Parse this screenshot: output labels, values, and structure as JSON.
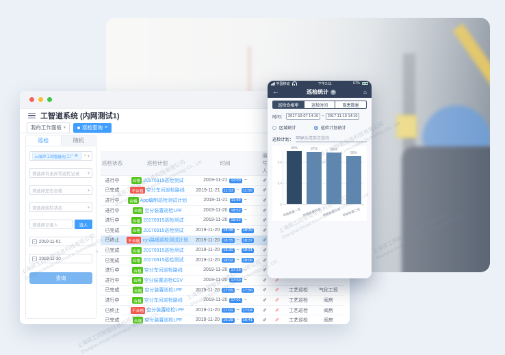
{
  "page": {
    "bg": "#ecf1f7"
  },
  "watermark": {
    "cn": "上海异工同智能信息科技有限公司",
    "en": "Shanghai Inroad Information Technology Co., Ltd."
  },
  "window": {
    "title": "工智道系统 (内网测试1)",
    "workspace_tab": "我的工作面板",
    "active_tab_label": "巡检查询",
    "sidebar": {
      "tabs": [
        {
          "label": "巡检",
          "active": true
        },
        {
          "label": "随机",
          "active": false
        }
      ],
      "factory_tag": "上海异工同智能化工厂",
      "filter_placeholders": [
        "请选择有无异常巡检记录",
        "请选择是否合格",
        "请选择巡检状态"
      ],
      "recorder_placeholder": "请选择记录人",
      "pick_person_button": "选人",
      "date_from": "2019-11-01",
      "date_to": "2019-11-30",
      "search_button": "查询"
    },
    "table": {
      "headers": [
        "巡检状态",
        "巡检计划",
        "时间",
        "编写人",
        "",
        "",
        ""
      ],
      "rows": [
        {
          "status": "进行中",
          "result": "合格",
          "plan": "20170915巡检测试",
          "date": "2019-11-21",
          "start": "12:00",
          "end": "",
          "type": "",
          "area": "",
          "highlight": false,
          "extra_badge": false
        },
        {
          "status": "已完成",
          "result": "不合格",
          "plan": "空分车间巡检路线",
          "date": "2019-11-21",
          "start": "11:53",
          "end": "11:58",
          "type": "",
          "area": "",
          "highlight": false,
          "extra_badge": false
        },
        {
          "status": "进行中",
          "result": "合格",
          "plan": "App编制巡检测试计划",
          "date": "2019-11-21",
          "start": "11:49",
          "end": "",
          "type": "",
          "area": "",
          "highlight": false,
          "extra_badge": false
        },
        {
          "status": "进行中",
          "result": "合格",
          "plan": "空分装置巡检LPF",
          "date": "2019-11-20",
          "start": "18:52",
          "end": "",
          "type": "",
          "area": "",
          "highlight": false,
          "extra_badge": false
        },
        {
          "status": "进行中",
          "result": "合格",
          "plan": "20170915巡检测试",
          "date": "2019-11-20",
          "start": "18:52",
          "end": "",
          "type": "",
          "area": "",
          "highlight": false,
          "extra_badge": false
        },
        {
          "status": "已完成",
          "result": "合格",
          "plan": "20170915巡检测试",
          "date": "2019-11-20",
          "start": "18:38",
          "end": "18:39",
          "type": "",
          "area": "",
          "highlight": false,
          "extra_badge": false
        },
        {
          "status": "已终止",
          "result": "不合格",
          "plan": "cys路线巡检测试计划",
          "date": "2019-11-20",
          "start": "18:35",
          "end": "18:37",
          "type": "",
          "area": "",
          "highlight": true,
          "extra_badge": false
        },
        {
          "status": "已完成",
          "result": "合格",
          "plan": "20170915巡检测试",
          "date": "2019-11-20",
          "start": "18:30",
          "end": "18:31",
          "type": "",
          "area": "",
          "highlight": false,
          "extra_badge": false
        },
        {
          "status": "已完成",
          "result": "合格",
          "plan": "20170915巡检测试",
          "date": "2019-11-20",
          "start": "18:02",
          "end": "18:06",
          "type": "",
          "area": "",
          "highlight": false,
          "extra_badge": false
        },
        {
          "status": "进行中",
          "result": "合格",
          "plan": "空分车间巡检路线",
          "date": "2019-11-20",
          "start": "17:59",
          "end": "",
          "type": "",
          "area": "",
          "highlight": false,
          "extra_badge": false
        },
        {
          "status": "进行中",
          "result": "合格",
          "plan": "空分装置巡检CSV",
          "date": "2019-11-20",
          "start": "17:59",
          "end": "",
          "type": "",
          "area": "",
          "highlight": false,
          "extra_badge": false
        },
        {
          "status": "已完成",
          "result": "合格",
          "plan": "空分装置巡检LPF",
          "date": "2019-11-20",
          "start": "17:55",
          "end": "17:56",
          "type": "工艺巡检",
          "area": "气化工段",
          "highlight": false,
          "extra_badge": false
        },
        {
          "status": "进行中",
          "result": "合格",
          "plan": "空分车间巡检路线",
          "date": "2019-11-20",
          "start": "17:01",
          "end": "",
          "type": "工艺巡检",
          "area": "阀房",
          "highlight": false,
          "extra_badge": false
        },
        {
          "status": "已终止",
          "result": "不合格",
          "plan": "空分装置巡检LPF",
          "date": "2019-11-20",
          "start": "17:01",
          "end": "17:04",
          "type": "工艺巡检",
          "area": "阀房",
          "highlight": false,
          "extra_badge": false
        },
        {
          "status": "已完成",
          "result": "合格",
          "plan": "空分装置巡检LPF",
          "date": "2019-11-20",
          "start": "16:38",
          "end": "16:41",
          "type": "工艺巡检",
          "area": "阀房",
          "highlight": false,
          "extra_badge": false
        },
        {
          "status": "已终止",
          "result": "不合格",
          "plan": "空分装置巡检LPF",
          "date": "2019-11-20",
          "start": "15:48",
          "end": "15:55",
          "type": "工艺巡检",
          "area": "阀房",
          "highlight": false,
          "extra_badge": true
        }
      ]
    }
  },
  "phone": {
    "status": {
      "carrier": "中国移动",
      "time": "下午2:11",
      "battery": "67%"
    },
    "nav": {
      "title": "巡检统计"
    },
    "tabs": [
      {
        "label": "巡检合格率",
        "active": true
      },
      {
        "label": "巡检时间",
        "active": false
      },
      {
        "label": "隐患数量",
        "active": false
      }
    ],
    "time_label": "时间：",
    "time_from": "2017-10-07 14:10",
    "time_tilde": "~",
    "time_to": "2017-11-10 14:10",
    "radios": [
      {
        "label": "区域统计",
        "selected": false
      },
      {
        "label": "巡检计划统计",
        "selected": true
      }
    ],
    "plan_label": "巡检计划：",
    "plan_value": "甲醇合成岗位巡检"
  },
  "chart_data": {
    "type": "bar",
    "title": "",
    "categories": [
      "甲醇装置一班",
      "甲醇装置四班",
      "甲醇装置三班",
      "甲醇装置二班"
    ],
    "values": [
      0.99,
      0.97,
      0.96,
      0.9
    ],
    "value_labels": [
      "99%",
      "97%",
      "96%",
      "90%"
    ],
    "xlabel": "",
    "ylabel": "",
    "ylim": [
      0,
      1
    ],
    "yticks": [
      0,
      0.4,
      0.8
    ],
    "grid": true,
    "legend": false,
    "bar_colors": [
      "#2f4a66",
      "#5f86ae",
      "#5f86ae",
      "#5f86ae"
    ]
  }
}
